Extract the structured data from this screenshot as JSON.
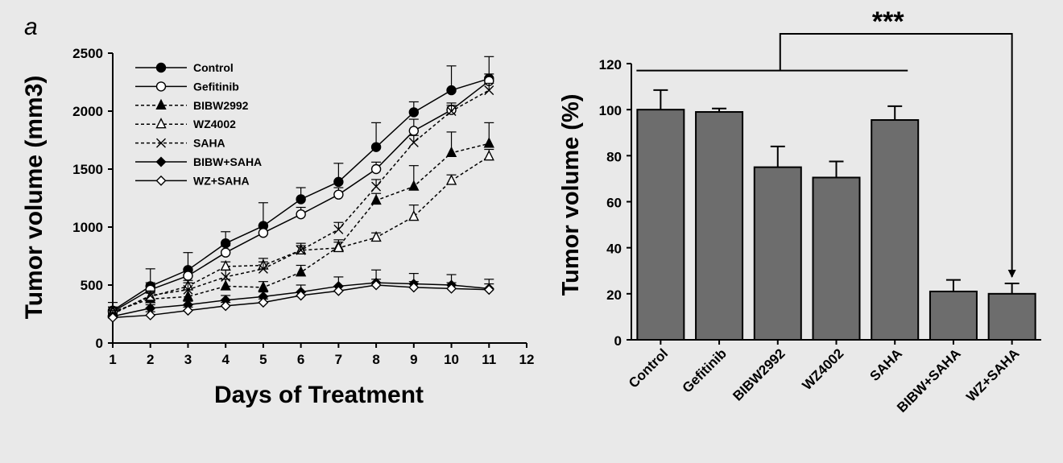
{
  "panel_label": "a",
  "chart_data": [
    {
      "type": "line",
      "xlabel": "Days of Treatment",
      "ylabel": "Tumor volume (mm3)",
      "xlim": [
        1,
        12
      ],
      "ylim": [
        0,
        2500
      ],
      "xticks": [
        1,
        2,
        3,
        4,
        5,
        6,
        7,
        8,
        9,
        10,
        11,
        12
      ],
      "yticks": [
        0,
        500,
        1000,
        1500,
        2000,
        2500
      ],
      "legend_position": "top-left",
      "x": [
        1,
        2,
        3,
        4,
        5,
        6,
        7,
        8,
        9,
        10,
        11
      ],
      "series": [
        {
          "name": "Control",
          "marker": "filled-circle",
          "dash": false,
          "values": [
            280,
            490,
            630,
            860,
            1010,
            1240,
            1390,
            1690,
            1990,
            2180,
            2280
          ],
          "errors": [
            70,
            150,
            150,
            100,
            200,
            100,
            160,
            210,
            90,
            210,
            190
          ]
        },
        {
          "name": "Gefitinib",
          "marker": "open-circle",
          "dash": false,
          "values": [
            270,
            460,
            580,
            780,
            950,
            1110,
            1280,
            1500,
            1830,
            2010,
            2260
          ],
          "errors": [
            40,
            60,
            60,
            60,
            60,
            60,
            60,
            60,
            100,
            60,
            60
          ]
        },
        {
          "name": "BIBW2992",
          "marker": "filled-triangle",
          "dash": true,
          "values": [
            270,
            380,
            400,
            490,
            480,
            610,
            830,
            1230,
            1350,
            1640,
            1720
          ],
          "errors": [
            40,
            50,
            60,
            60,
            50,
            60,
            60,
            60,
            180,
            180,
            180
          ]
        },
        {
          "name": "WZ4002",
          "marker": "open-triangle",
          "dash": true,
          "values": [
            260,
            400,
            490,
            660,
            670,
            800,
            820,
            910,
            1090,
            1400,
            1610
          ],
          "errors": [
            30,
            40,
            50,
            40,
            60,
            40,
            50,
            40,
            100,
            50,
            60
          ]
        },
        {
          "name": "SAHA",
          "marker": "cross",
          "dash": true,
          "values": [
            250,
            410,
            460,
            570,
            640,
            800,
            980,
            1350,
            1730,
            2000,
            2180
          ],
          "errors": [
            30,
            40,
            60,
            60,
            60,
            60,
            60,
            60,
            60,
            50,
            60
          ]
        },
        {
          "name": "BIBW+SAHA",
          "marker": "filled-diamond",
          "dash": false,
          "values": [
            230,
            300,
            330,
            370,
            400,
            440,
            490,
            520,
            510,
            500,
            470
          ],
          "errors": [
            20,
            30,
            30,
            40,
            40,
            60,
            80,
            110,
            90,
            90,
            80
          ]
        },
        {
          "name": "WZ+SAHA",
          "marker": "open-diamond",
          "dash": false,
          "values": [
            220,
            240,
            280,
            320,
            350,
            410,
            450,
            500,
            480,
            470,
            460
          ],
          "errors": [
            20,
            30,
            30,
            30,
            30,
            30,
            40,
            50,
            50,
            50,
            50
          ]
        }
      ]
    },
    {
      "type": "bar",
      "ylabel": "Tumor volume (%)",
      "ylim": [
        0,
        120
      ],
      "yticks": [
        0,
        20,
        40,
        60,
        80,
        100,
        120
      ],
      "categories": [
        "Control",
        "Gefitinib",
        "BIBW2992",
        "WZ4002",
        "SAHA",
        "BIBW+SAHA",
        "WZ+SAHA"
      ],
      "values": [
        100,
        99,
        75,
        70.5,
        95.5,
        21,
        20
      ],
      "errors": [
        8.5,
        1.5,
        9,
        7,
        6,
        5,
        4.5
      ],
      "bar_color": "#6d6d6d",
      "annotation": "***"
    }
  ]
}
